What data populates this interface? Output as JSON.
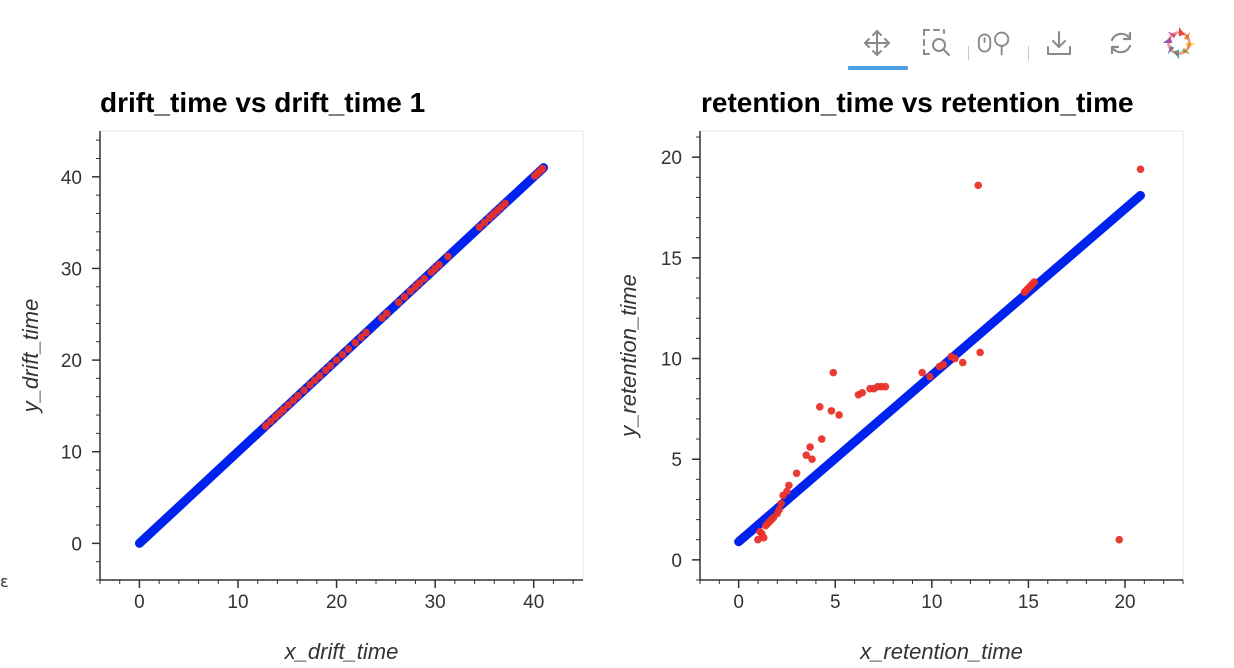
{
  "toolbar": {
    "tools": [
      {
        "name": "pan-tool",
        "icon": "move-arrows-icon",
        "active": true
      },
      {
        "name": "box-zoom-tool",
        "icon": "box-zoom-icon",
        "active": false
      },
      {
        "name": "wheel-zoom-tool",
        "icon": "wheel-zoom-icon",
        "active": false
      },
      {
        "name": "save-tool",
        "icon": "download-icon",
        "active": false
      },
      {
        "name": "reset-tool",
        "icon": "refresh-icon",
        "active": false
      },
      {
        "name": "bokeh-logo",
        "icon": "bokeh-logo-icon",
        "active": false
      }
    ],
    "active_color": "#4f9fe0"
  },
  "left_edge_glyph": "ɛ",
  "chart_data": [
    {
      "type": "scatter",
      "title": "drift_time vs drift_time 1",
      "xlabel": "x_drift_time",
      "ylabel": "y_drift_time",
      "xlim": [
        -4,
        45
      ],
      "ylim": [
        -4,
        45
      ],
      "xticks": [
        0,
        10,
        20,
        30,
        40
      ],
      "yticks": [
        0,
        10,
        20,
        30,
        40
      ],
      "grid": false,
      "series": [
        {
          "color": "#0022ee",
          "style": "thick-line",
          "x": [
            0,
            41
          ],
          "y": [
            0,
            41
          ]
        },
        {
          "color": "#e8322a",
          "style": "points",
          "x": [
            12.8,
            13.3,
            13.8,
            14.2,
            14.6,
            15.1,
            15.6,
            16.1,
            16.7,
            17.3,
            17.8,
            18.3,
            18.9,
            19.4,
            20.0,
            20.6,
            21.2,
            21.9,
            22.5,
            23.0,
            24.6,
            25.1,
            26.3,
            26.9,
            27.5,
            28.0,
            28.4,
            28.9,
            29.6,
            30.0,
            30.4,
            31.3,
            34.5,
            35.0,
            35.5,
            35.9,
            36.3,
            36.7,
            37.1,
            40.1,
            40.4,
            40.7,
            40.9
          ],
          "y": [
            12.8,
            13.3,
            13.8,
            14.2,
            14.6,
            15.1,
            15.6,
            16.1,
            16.7,
            17.3,
            17.8,
            18.3,
            18.9,
            19.4,
            20.0,
            20.6,
            21.2,
            21.9,
            22.5,
            23.0,
            24.6,
            25.1,
            26.3,
            26.9,
            27.5,
            28.0,
            28.4,
            28.9,
            29.6,
            30.0,
            30.4,
            31.3,
            34.5,
            35.0,
            35.5,
            35.9,
            36.3,
            36.7,
            37.1,
            40.1,
            40.4,
            40.7,
            40.9
          ]
        }
      ]
    },
    {
      "type": "scatter",
      "title": "retention_time vs retention_time",
      "xlabel": "x_retention_time",
      "ylabel": "y_retention_time",
      "xlim": [
        -2,
        23
      ],
      "ylim": [
        -1,
        21.3
      ],
      "xticks": [
        0,
        5,
        10,
        15,
        20
      ],
      "yticks": [
        0,
        5,
        10,
        15,
        20
      ],
      "grid": false,
      "series": [
        {
          "color": "#0022ee",
          "style": "thick-line",
          "x": [
            0,
            20.8
          ],
          "y": [
            0.9,
            18.1
          ]
        },
        {
          "color": "#e8322a",
          "style": "points",
          "x": [
            1.0,
            1.1,
            1.2,
            1.3,
            1.4,
            1.5,
            1.6,
            1.7,
            1.8,
            2.0,
            2.1,
            2.2,
            2.3,
            2.5,
            2.6,
            3.0,
            3.5,
            3.7,
            3.8,
            4.2,
            4.3,
            4.8,
            4.9,
            5.2,
            6.2,
            6.4,
            6.8,
            7.0,
            7.2,
            7.4,
            7.6,
            9.5,
            9.9,
            10.4,
            10.6,
            11.0,
            11.2,
            11.6,
            12.4,
            12.5,
            14.8,
            14.9,
            15.0,
            15.1,
            15.2,
            15.3,
            19.7,
            20.8
          ],
          "y": [
            1.0,
            1.4,
            1.3,
            1.1,
            1.7,
            1.8,
            1.9,
            2.0,
            2.1,
            2.3,
            2.5,
            2.8,
            3.2,
            3.4,
            3.7,
            4.3,
            5.2,
            5.6,
            5.0,
            7.6,
            6.0,
            7.4,
            9.3,
            7.2,
            8.2,
            8.3,
            8.5,
            8.5,
            8.6,
            8.6,
            8.6,
            9.3,
            9.1,
            9.6,
            9.7,
            10.1,
            10.0,
            9.8,
            18.6,
            10.3,
            13.3,
            13.4,
            13.5,
            13.6,
            13.7,
            13.8,
            1.0,
            19.4
          ]
        }
      ]
    }
  ]
}
